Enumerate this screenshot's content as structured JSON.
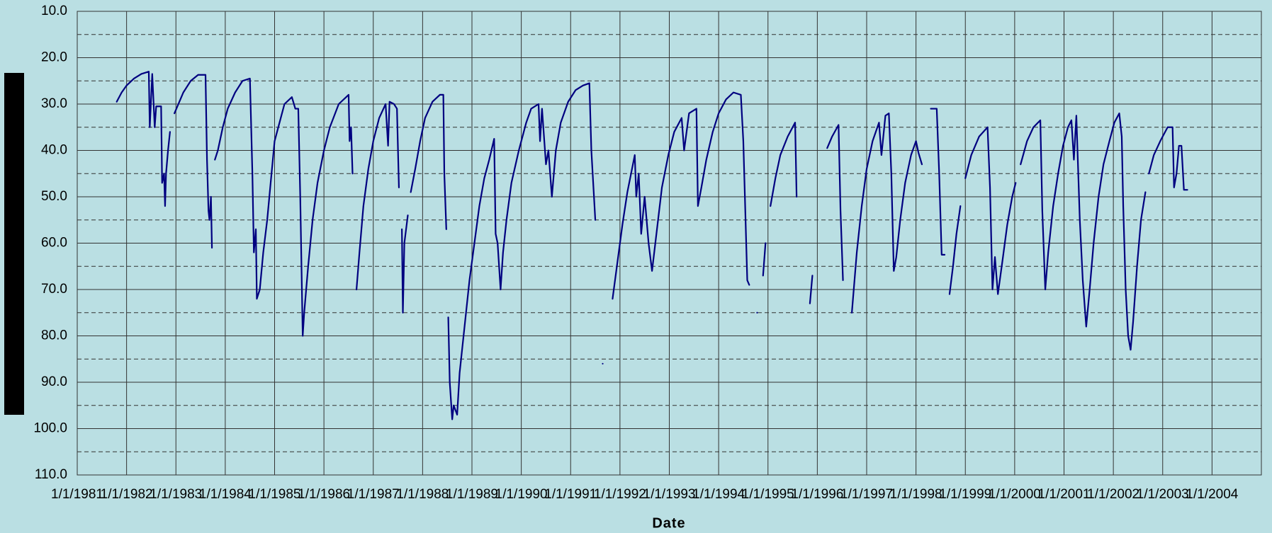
{
  "chart_data": {
    "type": "line",
    "x_label": "Date",
    "y_inverted": true,
    "grid": true,
    "xlim": [
      1981,
      2005
    ],
    "xticks": [
      {
        "value": 1981,
        "label": "1/1/1981"
      },
      {
        "value": 1982,
        "label": "1/1/1982"
      },
      {
        "value": 1983,
        "label": "1/1/1983"
      },
      {
        "value": 1984,
        "label": "1/1/1984"
      },
      {
        "value": 1985,
        "label": "1/1/1985"
      },
      {
        "value": 1986,
        "label": "1/1/1986"
      },
      {
        "value": 1987,
        "label": "1/1/1987"
      },
      {
        "value": 1988,
        "label": "1/1/1988"
      },
      {
        "value": 1989,
        "label": "1/1/1989"
      },
      {
        "value": 1990,
        "label": "1/1/1990"
      },
      {
        "value": 1991,
        "label": "1/1/1991"
      },
      {
        "value": 1992,
        "label": "1/1/1992"
      },
      {
        "value": 1993,
        "label": "1/1/1993"
      },
      {
        "value": 1994,
        "label": "1/1/1994"
      },
      {
        "value": 1995,
        "label": "1/1/1995"
      },
      {
        "value": 1996,
        "label": "1/1/1996"
      },
      {
        "value": 1997,
        "label": "1/1/1997"
      },
      {
        "value": 1998,
        "label": "1/1/1998"
      },
      {
        "value": 1999,
        "label": "1/1/1999"
      },
      {
        "value": 2000,
        "label": "1/1/2000"
      },
      {
        "value": 2001,
        "label": "1/1/2001"
      },
      {
        "value": 2002,
        "label": "1/1/2002"
      },
      {
        "value": 2003,
        "label": "1/1/2003"
      },
      {
        "value": 2004,
        "label": "1/1/2004"
      }
    ],
    "ylim": [
      10,
      110
    ],
    "yticks": [
      {
        "value": 10,
        "label": "10.0"
      },
      {
        "value": 20,
        "label": "20.0"
      },
      {
        "value": 30,
        "label": "30.0"
      },
      {
        "value": 40,
        "label": "40.0"
      },
      {
        "value": 50,
        "label": "50.0"
      },
      {
        "value": 60,
        "label": "60.0"
      },
      {
        "value": 70,
        "label": "70.0"
      },
      {
        "value": 80,
        "label": "80.0"
      },
      {
        "value": 90,
        "label": "90.0"
      },
      {
        "value": 100,
        "label": "100.0"
      },
      {
        "value": 110,
        "label": "110.0"
      }
    ],
    "minor_yticks": [
      15,
      25,
      35,
      45,
      55,
      65,
      75,
      85,
      95,
      105
    ],
    "x": [
      1981.8,
      1981.9,
      1982.0,
      1982.15,
      1982.3,
      1982.45,
      1982.47,
      1982.52,
      1982.57,
      1982.6,
      1982.7,
      1982.72,
      1982.76,
      1982.78,
      1982.8,
      1982.84,
      1982.88,
      1982.92,
      1982.97,
      1983.05,
      1983.15,
      1983.3,
      1983.45,
      1983.6,
      1983.63,
      1983.66,
      1983.68,
      1983.71,
      1983.73,
      1983.76,
      1983.79,
      1983.85,
      1983.95,
      1984.05,
      1984.2,
      1984.35,
      1984.5,
      1984.55,
      1984.58,
      1984.62,
      1984.64,
      1984.7,
      1984.77,
      1984.85,
      1984.92,
      1985.0,
      1985.1,
      1985.2,
      1985.35,
      1985.42,
      1985.48,
      1985.52,
      1985.57,
      1985.6,
      1985.68,
      1985.77,
      1985.87,
      1986.0,
      1986.12,
      1986.3,
      1986.5,
      1986.52,
      1986.55,
      1986.58,
      1986.62,
      1986.66,
      1986.72,
      1986.8,
      1986.9,
      1987.0,
      1987.12,
      1987.25,
      1987.3,
      1987.33,
      1987.42,
      1987.48,
      1987.52,
      1987.55,
      1987.58,
      1987.6,
      1987.63,
      1987.7,
      1987.73,
      1987.76,
      1987.85,
      1987.95,
      1988.05,
      1988.2,
      1988.35,
      1988.42,
      1988.44,
      1988.48,
      1988.5,
      1988.52,
      1988.55,
      1988.6,
      1988.63,
      1988.7,
      1988.75,
      1988.85,
      1988.95,
      1989.05,
      1989.15,
      1989.25,
      1989.35,
      1989.45,
      1989.48,
      1989.52,
      1989.58,
      1989.63,
      1989.7,
      1989.8,
      1989.95,
      1990.1,
      1990.2,
      1990.35,
      1990.38,
      1990.42,
      1990.5,
      1990.55,
      1990.62,
      1990.7,
      1990.8,
      1990.95,
      1991.1,
      1991.25,
      1991.38,
      1991.42,
      1991.5,
      1991.58,
      1991.65,
      1991.75,
      1991.85,
      1991.95,
      1992.05,
      1992.15,
      1992.3,
      1992.33,
      1992.38,
      1992.43,
      1992.5,
      1992.58,
      1992.65,
      1992.75,
      1992.85,
      1992.98,
      1993.1,
      1993.25,
      1993.3,
      1993.4,
      1993.55,
      1993.58,
      1993.65,
      1993.75,
      1993.88,
      1994.0,
      1994.15,
      1994.3,
      1994.45,
      1994.5,
      1994.58,
      1994.62,
      1994.7,
      1994.78,
      1994.85,
      1994.9,
      1994.95,
      1995.0,
      1995.05,
      1995.15,
      1995.25,
      1995.4,
      1995.55,
      1995.58,
      1995.7,
      1995.85,
      1995.9,
      1996.05,
      1996.2,
      1996.3,
      1996.43,
      1996.47,
      1996.52,
      1996.62,
      1996.7,
      1996.8,
      1996.9,
      1997.0,
      1997.12,
      1997.25,
      1997.3,
      1997.38,
      1997.45,
      1997.5,
      1997.55,
      1997.6,
      1997.68,
      1997.78,
      1997.9,
      1998.0,
      1998.05,
      1998.12,
      1998.2,
      1998.3,
      1998.42,
      1998.47,
      1998.52,
      1998.58,
      1998.62,
      1998.68,
      1998.75,
      1998.82,
      1998.9,
      1998.95,
      1999.0,
      1999.12,
      1999.28,
      1999.45,
      1999.5,
      1999.55,
      1999.6,
      1999.66,
      1999.75,
      1999.85,
      1999.95,
      2000.02,
      2000.08,
      2000.12,
      2000.25,
      2000.38,
      2000.52,
      2000.56,
      2000.62,
      2000.68,
      2000.78,
      2000.88,
      2000.98,
      2001.08,
      2001.15,
      2001.2,
      2001.25,
      2001.32,
      2001.38,
      2001.45,
      2001.52,
      2001.6,
      2001.7,
      2001.8,
      2001.92,
      2002.02,
      2002.12,
      2002.17,
      2002.2,
      2002.25,
      2002.3,
      2002.35,
      2002.4,
      2002.48,
      2002.56,
      2002.65,
      2002.68,
      2002.72,
      2002.82,
      2002.95,
      2003.1,
      2003.2,
      2003.23,
      2003.28,
      2003.33,
      2003.38,
      2003.43,
      2003.5
    ],
    "series": [
      {
        "color": "#000080",
        "values": [
          29.5,
          27.5,
          26,
          24.5,
          23.5,
          23,
          35,
          23.5,
          35,
          30.5,
          30.5,
          47,
          45,
          52,
          45,
          40,
          36,
          null,
          32,
          30,
          27.5,
          25,
          23.7,
          23.7,
          42,
          53,
          55,
          50,
          61,
          null,
          42,
          40,
          35,
          31,
          27.5,
          25,
          24.5,
          45,
          62,
          57,
          72,
          70,
          62,
          55,
          47,
          38,
          34,
          30,
          28.5,
          31,
          31,
          50,
          80,
          75,
          65,
          55,
          47,
          40,
          35,
          30,
          28,
          38,
          35,
          45,
          null,
          70,
          62,
          52,
          44,
          38,
          33,
          30,
          39,
          29.5,
          30,
          31,
          48,
          null,
          57,
          75,
          60,
          54,
          null,
          49,
          44,
          38,
          33,
          29.5,
          28,
          28,
          45,
          57,
          null,
          76,
          90,
          98,
          95,
          97,
          88,
          78,
          68,
          60,
          52,
          46,
          42,
          37.5,
          58,
          60,
          70,
          62,
          55,
          47,
          40,
          34,
          31,
          30,
          38,
          31,
          43,
          40,
          50,
          40,
          34,
          29.5,
          27,
          26,
          25.5,
          40,
          55,
          null,
          86,
          null,
          72,
          64,
          56,
          49,
          41,
          50,
          45,
          58,
          50,
          60,
          66,
          57,
          48,
          41,
          36,
          33,
          40,
          32,
          31,
          52,
          48,
          42,
          36,
          32,
          29,
          27.5,
          28,
          38,
          68,
          69,
          null,
          75,
          null,
          67,
          60,
          null,
          52,
          46,
          41,
          37,
          34,
          50,
          null,
          73,
          67,
          null,
          39.5,
          37,
          34.5,
          53,
          68,
          null,
          75,
          62,
          52,
          44,
          38,
          34,
          41,
          32.5,
          32,
          45,
          66,
          63,
          55,
          47,
          41,
          38,
          40.5,
          43,
          null,
          31,
          31,
          45,
          62.5,
          62.5,
          null,
          71,
          65,
          58,
          52,
          null,
          46,
          41,
          37,
          35,
          48,
          70,
          63,
          71,
          64,
          56,
          50,
          47,
          null,
          43,
          38,
          35,
          33.5,
          53,
          70,
          62,
          52,
          45,
          39,
          35,
          33.5,
          42,
          32.5,
          55,
          68,
          78,
          70,
          60,
          50,
          43,
          38,
          34,
          32,
          37,
          52,
          70,
          80,
          83,
          77,
          65,
          55,
          49,
          null,
          45,
          41,
          38,
          35,
          35,
          48,
          45,
          39,
          39,
          48.5,
          48.5
        ]
      }
    ]
  }
}
